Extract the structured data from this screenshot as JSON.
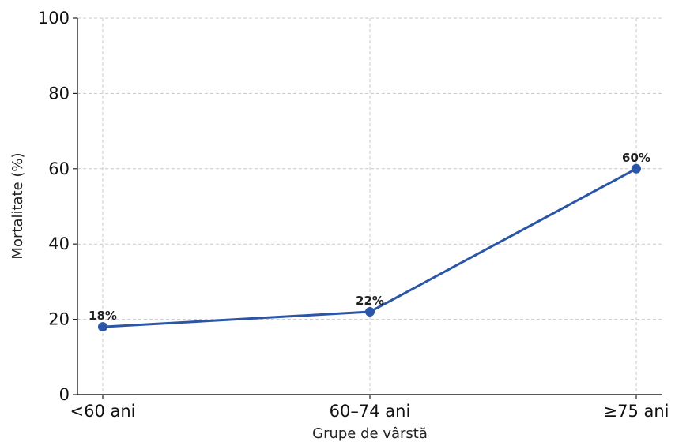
{
  "chart_data": {
    "type": "line",
    "title": "",
    "xlabel": "Grupe de vârstă",
    "ylabel": "Mortalitate (%)",
    "categories": [
      "<60 ani",
      "60–74 ani",
      "≥75 ani"
    ],
    "series": [
      {
        "values": [
          18,
          22,
          60
        ],
        "color": "#2b55a6"
      }
    ],
    "data_labels": [
      "18%",
      "22%",
      "60%"
    ],
    "ylim": [
      0,
      100
    ],
    "yticks": [
      0,
      20,
      40,
      60,
      80,
      100
    ],
    "grid": true,
    "legend": "none"
  }
}
